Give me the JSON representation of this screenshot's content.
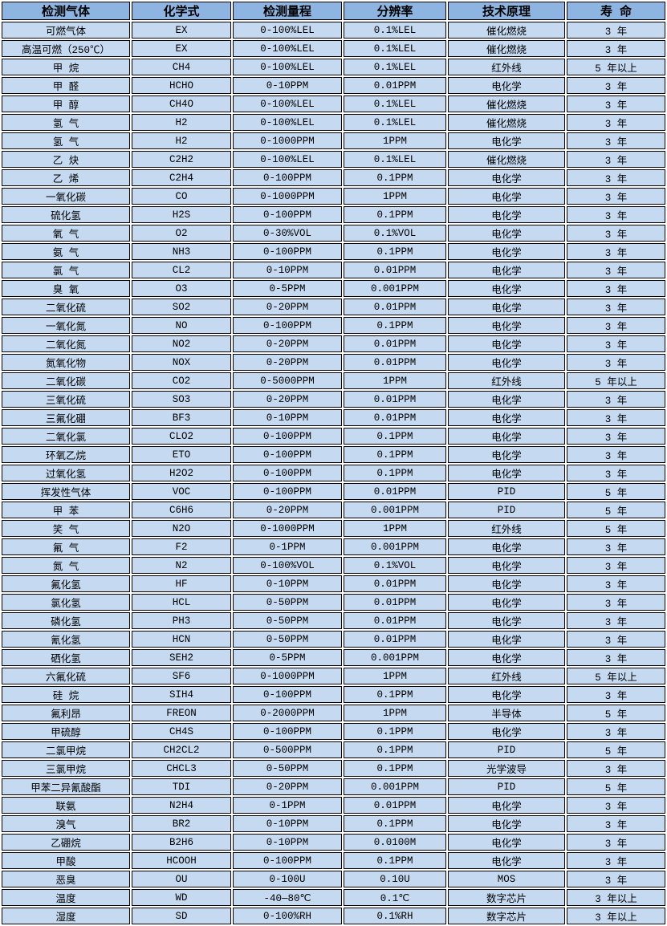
{
  "colors": {
    "header_bg": "#8EB4E2",
    "row_bg": "#C5D9F1",
    "border": "#000000",
    "gap": "#FFFFFF",
    "text": "#000000"
  },
  "table": {
    "headers": [
      "检测气体",
      "化学式",
      "检测量程",
      "分辨率",
      "技术原理",
      "寿 命"
    ],
    "rows": [
      [
        "可燃气体",
        "EX",
        "0-100%LEL",
        "0.1%LEL",
        "催化燃烧",
        "3 年"
      ],
      [
        "高温可燃（250℃）",
        "EX",
        "0-100%LEL",
        "0.1%LEL",
        "催化燃烧",
        "3 年"
      ],
      [
        "甲 烷",
        "CH4",
        "0-100%LEL",
        "0.1%LEL",
        "红外线",
        "5 年以上"
      ],
      [
        "甲 醛",
        "HCHO",
        "0-10PPM",
        "0.01PPM",
        "电化学",
        "3 年"
      ],
      [
        "甲 醇",
        "CH4O",
        "0-100%LEL",
        "0.1%LEL",
        "催化燃烧",
        "3 年"
      ],
      [
        "氢 气",
        "H2",
        "0-100%LEL",
        "0.1%LEL",
        "催化燃烧",
        "3 年"
      ],
      [
        "氢 气",
        "H2",
        "0-1000PPM",
        "1PPM",
        "电化学",
        "3 年"
      ],
      [
        "乙 炔",
        "C2H2",
        "0-100%LEL",
        "0.1%LEL",
        "催化燃烧",
        "3 年"
      ],
      [
        "乙 烯",
        "C2H4",
        "0-100PPM",
        "0.1PPM",
        "电化学",
        "3 年"
      ],
      [
        "一氧化碳",
        "CO",
        "0-1000PPM",
        "1PPM",
        "电化学",
        "3 年"
      ],
      [
        "硫化氢",
        "H2S",
        "0-100PPM",
        "0.1PPM",
        "电化学",
        "3 年"
      ],
      [
        "氧 气",
        "O2",
        "0-30%VOL",
        "0.1%VOL",
        "电化学",
        "3 年"
      ],
      [
        "氨 气",
        "NH3",
        "0-100PPM",
        "0.1PPM",
        "电化学",
        "3 年"
      ],
      [
        "氯 气",
        "CL2",
        "0-10PPM",
        "0.01PPM",
        "电化学",
        "3 年"
      ],
      [
        "臭 氧",
        "O3",
        "0-5PPM",
        "0.001PPM",
        "电化学",
        "3 年"
      ],
      [
        "二氧化硫",
        "SO2",
        "0-20PPM",
        "0.01PPM",
        "电化学",
        "3 年"
      ],
      [
        "一氧化氮",
        "NO",
        "0-100PPM",
        "0.1PPM",
        "电化学",
        "3 年"
      ],
      [
        "二氧化氮",
        "NO2",
        "0-20PPM",
        "0.01PPM",
        "电化学",
        "3 年"
      ],
      [
        "氮氧化物",
        "NOX",
        "0-20PPM",
        "0.01PPM",
        "电化学",
        "3 年"
      ],
      [
        "二氧化碳",
        "CO2",
        "0-5000PPM",
        "1PPM",
        "红外线",
        "5 年以上"
      ],
      [
        "三氧化硫",
        "SO3",
        "0-20PPM",
        "0.01PPM",
        "电化学",
        "3 年"
      ],
      [
        "三氟化硼",
        "BF3",
        "0-10PPM",
        "0.01PPM",
        "电化学",
        "3 年"
      ],
      [
        "二氧化氯",
        "CLO2",
        "0-100PPM",
        "0.1PPM",
        "电化学",
        "3 年"
      ],
      [
        "环氧乙烷",
        "ETO",
        "0-100PPM",
        "0.1PPM",
        "电化学",
        "3 年"
      ],
      [
        "过氧化氢",
        "H2O2",
        "0-100PPM",
        "0.1PPM",
        "电化学",
        "3 年"
      ],
      [
        "挥发性气体",
        "VOC",
        "0-100PPM",
        "0.01PPM",
        "PID",
        "5 年"
      ],
      [
        "甲 苯",
        "C6H6",
        "0-20PPM",
        "0.001PPM",
        "PID",
        "5 年"
      ],
      [
        "笑 气",
        "N2O",
        "0-1000PPM",
        "1PPM",
        "红外线",
        "5 年"
      ],
      [
        "氟 气",
        "F2",
        "0-1PPM",
        "0.001PPM",
        "电化学",
        "3 年"
      ],
      [
        "氮 气",
        "N2",
        "0-100%VOL",
        "0.1%VOL",
        "电化学",
        "3 年"
      ],
      [
        "氟化氢",
        "HF",
        "0-10PPM",
        "0.01PPM",
        "电化学",
        "3 年"
      ],
      [
        "氯化氢",
        "HCL",
        "0-50PPM",
        "0.01PPM",
        "电化学",
        "3 年"
      ],
      [
        "磷化氢",
        "PH3",
        "0-50PPM",
        "0.01PPM",
        "电化学",
        "3 年"
      ],
      [
        "氰化氢",
        "HCN",
        "0-50PPM",
        "0.01PPM",
        "电化学",
        "3 年"
      ],
      [
        "硒化氢",
        "SEH2",
        "0-5PPM",
        "0.001PPM",
        "电化学",
        "3 年"
      ],
      [
        "六氟化硫",
        "SF6",
        "0-1000PPM",
        "1PPM",
        "红外线",
        "5 年以上"
      ],
      [
        "硅 烷",
        "SIH4",
        "0-100PPM",
        "0.1PPM",
        "电化学",
        "3 年"
      ],
      [
        "氟利昂",
        "FREON",
        "0-2000PPM",
        "1PPM",
        "半导体",
        "5 年"
      ],
      [
        "甲硫醇",
        "CH4S",
        "0-100PPM",
        "0.1PPM",
        "电化学",
        "3 年"
      ],
      [
        "二氯甲烷",
        "CH2CL2",
        "0-500PPM",
        "0.1PPM",
        "PID",
        "5 年"
      ],
      [
        "三氯甲烷",
        "CHCL3",
        "0-50PPM",
        "0.1PPM",
        "光学波导",
        "3 年"
      ],
      [
        "甲苯二异氰酸酯",
        "TDI",
        "0-20PPM",
        "0.001PPM",
        "PID",
        "5 年"
      ],
      [
        "联氨",
        "N2H4",
        "0-1PPM",
        "0.01PPM",
        "电化学",
        "3 年"
      ],
      [
        "溴气",
        "BR2",
        "0-10PPM",
        "0.1PPM",
        "电化学",
        "3 年"
      ],
      [
        "乙硼烷",
        "B2H6",
        "0-10PPM",
        "0.0100M",
        "电化学",
        "3 年"
      ],
      [
        "甲酸",
        "HCOOH",
        "0-100PPM",
        "0.1PPM",
        "电化学",
        "3 年"
      ],
      [
        "恶臭",
        "OU",
        "0-100U",
        "0.10U",
        "MOS",
        "3 年"
      ],
      [
        "温度",
        "WD",
        "-40—80℃",
        "0.1℃",
        "数字芯片",
        "3 年以上"
      ],
      [
        "湿度",
        "SD",
        "0-100%RH",
        "0.1%RH",
        "数字芯片",
        "3 年以上"
      ]
    ]
  }
}
